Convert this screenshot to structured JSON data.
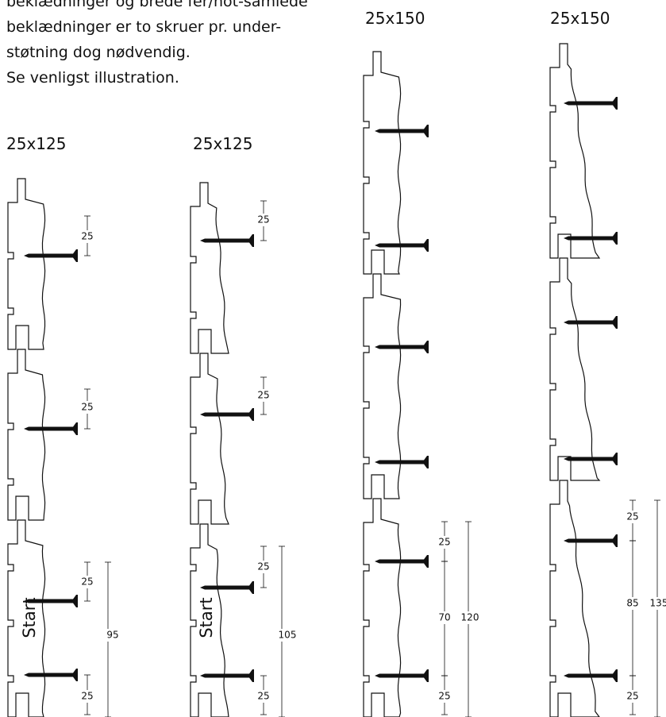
{
  "intro": [
    "beklædninger og brede fer/not-samlede",
    "beklædninger er to skruer pr. under-",
    "støtning dog nødvendig.",
    "Se venligst illustration."
  ],
  "columns": [
    {
      "heading": "25x125",
      "start": "Start",
      "dimensions": [
        "25",
        "25",
        "25",
        "95",
        "25"
      ]
    },
    {
      "heading": "25x125",
      "start": "Start",
      "dimensions": [
        "25",
        "25",
        "25",
        "105",
        "25"
      ]
    },
    {
      "heading": "25x150",
      "dimensions": [
        "25",
        "70",
        "120",
        "25"
      ]
    },
    {
      "heading": "25x150",
      "dimensions": [
        "25",
        "85",
        "135",
        "25"
      ]
    }
  ]
}
